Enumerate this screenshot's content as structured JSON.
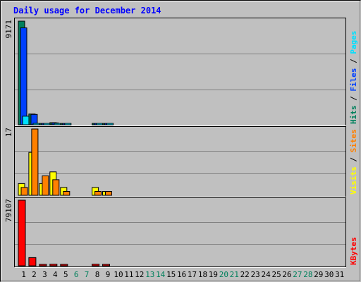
{
  "chart_data": {
    "type": "bar",
    "title": "Daily usage for December 2014",
    "categories": [
      "1",
      "2",
      "3",
      "4",
      "5",
      "6",
      "7",
      "8",
      "9",
      "10",
      "11",
      "12",
      "13",
      "14",
      "15",
      "16",
      "17",
      "18",
      "19",
      "20",
      "21",
      "22",
      "23",
      "24",
      "25",
      "26",
      "27",
      "28",
      "29",
      "30",
      "31"
    ],
    "weekend_categories": [
      "6",
      "7",
      "13",
      "14",
      "20",
      "21",
      "27",
      "28"
    ],
    "panels": [
      {
        "id": "hits",
        "max_label": "9171",
        "ylim": [
          0,
          9171
        ],
        "grid": true,
        "legend": [
          {
            "text": "Hits",
            "color": "#00805c"
          },
          {
            "text": " / ",
            "color": "#000000"
          },
          {
            "text": "Files",
            "color": "#0040ff"
          },
          {
            "text": " / ",
            "color": "#000000"
          },
          {
            "text": "Pages",
            "color": "#00e0ff"
          }
        ],
        "series": [
          {
            "name": "Hits",
            "color": "#00805c",
            "values": [
              9171,
              952,
              98,
              185,
              47,
              0,
              0,
              120,
              66,
              0,
              0,
              0,
              0,
              0,
              0,
              0,
              0,
              0,
              0,
              0,
              0,
              0,
              0,
              0,
              0,
              0,
              0,
              0,
              0,
              0,
              0
            ]
          },
          {
            "name": "Files",
            "color": "#0040ff",
            "values": [
              8580,
              918,
              90,
              170,
              42,
              0,
              0,
              110,
              60,
              0,
              0,
              0,
              0,
              0,
              0,
              0,
              0,
              0,
              0,
              0,
              0,
              0,
              0,
              0,
              0,
              0,
              0,
              0,
              0,
              0,
              0
            ]
          },
          {
            "name": "Pages",
            "color": "#00e0ff",
            "values": [
              760,
              96,
              14,
              22,
              7,
              0,
              0,
              14,
              8,
              0,
              0,
              0,
              0,
              0,
              0,
              0,
              0,
              0,
              0,
              0,
              0,
              0,
              0,
              0,
              0,
              0,
              0,
              0,
              0,
              0,
              0
            ]
          }
        ]
      },
      {
        "id": "visits",
        "max_label": "17",
        "ylim": [
          0,
          17
        ],
        "grid": true,
        "legend": [
          {
            "text": "Visits",
            "color": "#ffff00"
          },
          {
            "text": " / ",
            "color": "#000000"
          },
          {
            "text": "Sites",
            "color": "#ff8000"
          }
        ],
        "series": [
          {
            "name": "Visits",
            "color": "#ffff00",
            "values": [
              3,
              11,
              3,
              6,
              2,
              0,
              0,
              2,
              1,
              0,
              0,
              0,
              0,
              0,
              0,
              0,
              0,
              0,
              0,
              0,
              0,
              0,
              0,
              0,
              0,
              0,
              0,
              0,
              0,
              0,
              0
            ]
          },
          {
            "name": "Sites",
            "color": "#ff8000",
            "values": [
              2,
              17,
              5,
              4,
              1,
              0,
              0,
              1,
              1,
              0,
              0,
              0,
              0,
              0,
              0,
              0,
              0,
              0,
              0,
              0,
              0,
              0,
              0,
              0,
              0,
              0,
              0,
              0,
              0,
              0,
              0
            ]
          }
        ]
      },
      {
        "id": "kbytes",
        "max_label": "79107",
        "ylim": [
          0,
          79107
        ],
        "grid": true,
        "legend": [
          {
            "text": "KBytes",
            "color": "#ff0000"
          }
        ],
        "series": [
          {
            "name": "KBytes",
            "color": "#ff0000",
            "values": [
              79107,
              9900,
              420,
              1900,
              380,
              0,
              0,
              1850,
              350,
              0,
              0,
              0,
              0,
              0,
              0,
              0,
              0,
              0,
              0,
              0,
              0,
              0,
              0,
              0,
              0,
              0,
              0,
              0,
              0,
              0,
              0
            ]
          }
        ]
      }
    ]
  },
  "colors": {
    "background": "#c0c0c0",
    "title": "#0000ff",
    "weekday_label": "#000000",
    "weekend_label": "#00805c",
    "grid": "#808080"
  }
}
